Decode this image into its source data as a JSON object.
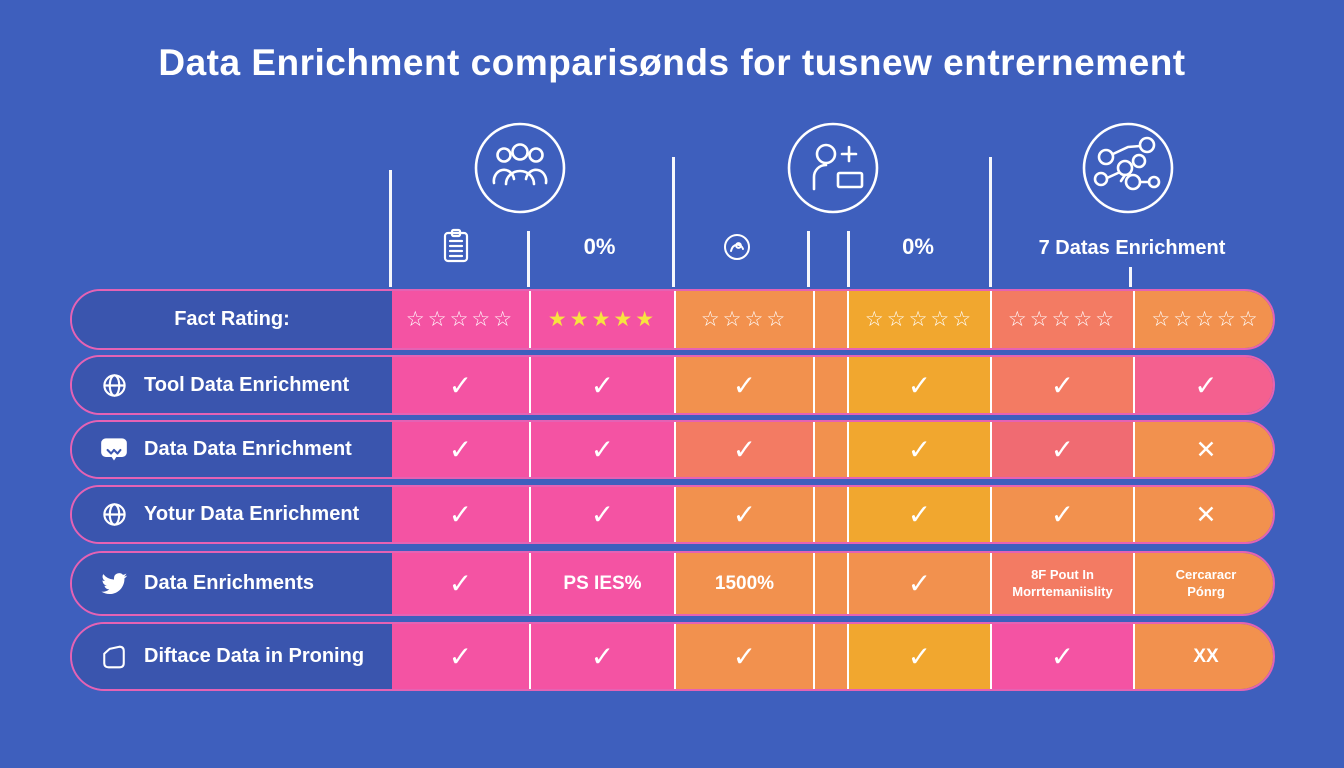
{
  "title": "Data Enrichment comparisønds for tusnew entrernement",
  "colors": {
    "background": "#3E5FBD",
    "label_blue": "#3A55AE",
    "outline_pink": "#E562B4",
    "pink": "#F453A3",
    "rose": "#F4608F",
    "red": "#F06B72",
    "orange": "#F2914E",
    "amber": "#F1A72F",
    "salmon": "#F37B63",
    "star_yellow": "#F7E33F",
    "white": "#FFFFFF"
  },
  "header": {
    "hero_icons": [
      "team-icon",
      "person-add-icon",
      "network-icon"
    ],
    "col1_icon": "clipboard-icon",
    "col2_label": "0%",
    "col3_icon": "badge-icon",
    "col4_label": "0%",
    "col56_label": "7 Datas Enrichment"
  },
  "table": {
    "rows": [
      {
        "label": "Fact Rating:",
        "icon": null,
        "cells": [
          {
            "bg": "pink",
            "type": "stars",
            "count": 5,
            "filled": false
          },
          {
            "bg": "pink",
            "type": "stars",
            "count": 5,
            "filled": true
          },
          {
            "bg": "orange",
            "type": "stars",
            "count": 4,
            "filled": false
          },
          {
            "bg": "amber",
            "type": "stars",
            "count": 5,
            "filled": false
          },
          {
            "bg": "salmon",
            "type": "stars",
            "count": 5,
            "filled": false
          },
          {
            "bg": "orange",
            "type": "stars",
            "count": 5,
            "filled": false
          }
        ]
      },
      {
        "label": "Tool Data Enrichment",
        "icon": "globe-icon",
        "cells": [
          {
            "bg": "pink",
            "type": "check"
          },
          {
            "bg": "pink",
            "type": "check"
          },
          {
            "bg": "orange",
            "type": "check"
          },
          {
            "bg": "amber",
            "type": "check"
          },
          {
            "bg": "salmon",
            "type": "check"
          },
          {
            "bg": "rose",
            "type": "check"
          }
        ]
      },
      {
        "label": "Data Data Enrichment",
        "icon": "chat-icon",
        "cells": [
          {
            "bg": "pink",
            "type": "check"
          },
          {
            "bg": "pink",
            "type": "check"
          },
          {
            "bg": "salmon",
            "type": "check"
          },
          {
            "bg": "amber",
            "type": "check"
          },
          {
            "bg": "red",
            "type": "check"
          },
          {
            "bg": "orange",
            "type": "x"
          }
        ]
      },
      {
        "label": "Yotur Data Enrichment",
        "icon": "globe-icon",
        "cells": [
          {
            "bg": "pink",
            "type": "check"
          },
          {
            "bg": "pink",
            "type": "check"
          },
          {
            "bg": "orange",
            "type": "check"
          },
          {
            "bg": "amber",
            "type": "check"
          },
          {
            "bg": "orange",
            "type": "check"
          },
          {
            "bg": "orange",
            "type": "x"
          }
        ]
      },
      {
        "label": "Data Enrichments",
        "icon": "twitter-icon",
        "cells": [
          {
            "bg": "pink",
            "type": "check"
          },
          {
            "bg": "pink",
            "type": "text",
            "lines": [
              "PS IES%"
            ]
          },
          {
            "bg": "orange",
            "type": "text",
            "lines": [
              "1500%"
            ]
          },
          {
            "bg": "orange",
            "type": "check"
          },
          {
            "bg": "salmon",
            "type": "text",
            "lines": [
              "8F Pout In",
              "Morrtemaniislity"
            ]
          },
          {
            "bg": "orange",
            "type": "text",
            "lines": [
              "Cercaracr",
              "Pónrg"
            ]
          }
        ]
      },
      {
        "label": "Diftace Data in Proning",
        "icon": "tag-icon",
        "cells": [
          {
            "bg": "pink",
            "type": "check"
          },
          {
            "bg": "pink",
            "type": "check"
          },
          {
            "bg": "orange",
            "type": "check"
          },
          {
            "bg": "amber",
            "type": "check"
          },
          {
            "bg": "pink",
            "type": "check"
          },
          {
            "bg": "orange",
            "type": "text",
            "lines": [
              "XX"
            ]
          }
        ]
      }
    ]
  },
  "chart_data": {
    "type": "table",
    "title": "Data Enrichment comparisønds for tusnew entrernement",
    "column_groups": [
      "team",
      "person-add",
      "network"
    ],
    "columns": [
      "clipboard",
      "0%",
      "badge",
      "0%",
      "7 Datas Enrichment (left)",
      "7 Datas Enrichment (right)"
    ],
    "rows": [
      {
        "label": "Fact Rating:",
        "values": [
          "0/5 stars outline",
          "5/5 stars yellow",
          "0/4 stars outline",
          "0/5 stars outline",
          "0/5 stars outline",
          "0/5 stars outline"
        ]
      },
      {
        "label": "Tool Data Enrichment",
        "values": [
          "✓",
          "✓",
          "✓",
          "✓",
          "✓",
          "✓"
        ]
      },
      {
        "label": "Data Data Enrichment",
        "values": [
          "✓",
          "✓",
          "✓",
          "✓",
          "✓",
          "✕"
        ]
      },
      {
        "label": "Yotur Data Enrichment",
        "values": [
          "✓",
          "✓",
          "✓",
          "✓",
          "✓",
          "✕"
        ]
      },
      {
        "label": "Data Enrichments",
        "values": [
          "✓",
          "PS IES%",
          "1500%",
          "✓",
          "8F Pout In Morrtemaniislity",
          "Cercaracr Pónrg"
        ]
      },
      {
        "label": "Diftace Data in Proning",
        "values": [
          "✓",
          "✓",
          "✓",
          "✓",
          "✓",
          "XX"
        ]
      }
    ],
    "legend_position": "none",
    "grid": false
  }
}
